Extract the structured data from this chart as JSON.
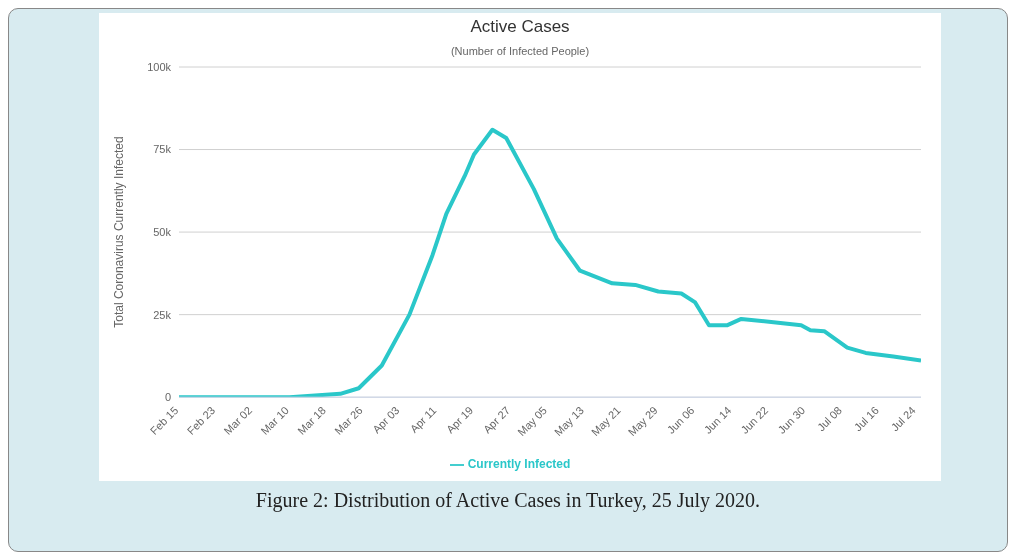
{
  "chart_data": {
    "type": "line",
    "title": "Active Cases",
    "subtitle": "(Number of Infected People)",
    "ylabel": "Total Coronavirus Currently Infected",
    "x": [
      "2020-02-15",
      "2020-03-10",
      "2020-03-21",
      "2020-03-25",
      "2020-03-30",
      "2020-04-05",
      "2020-04-10",
      "2020-04-13",
      "2020-04-17",
      "2020-04-19",
      "2020-04-23",
      "2020-04-26",
      "2020-05-02",
      "2020-05-07",
      "2020-05-12",
      "2020-05-19",
      "2020-05-24",
      "2020-05-29",
      "2020-06-03",
      "2020-06-06",
      "2020-06-09",
      "2020-06-13",
      "2020-06-16",
      "2020-06-23",
      "2020-06-29",
      "2020-07-01",
      "2020-07-04",
      "2020-07-09",
      "2020-07-13",
      "2020-07-19",
      "2020-07-25"
    ],
    "series": [
      {
        "name": "Currently Infected",
        "color": "#2ac7c9",
        "values": [
          0,
          0,
          1000,
          2700,
          9600,
          25000,
          43000,
          55500,
          67000,
          73500,
          81000,
          78500,
          63000,
          48000,
          38300,
          34500,
          34000,
          32000,
          31400,
          28700,
          21800,
          21800,
          23700,
          22700,
          21800,
          20300,
          20000,
          15000,
          13400,
          12300,
          11100
        ]
      }
    ],
    "xlim": [
      "2020-02-15",
      "2020-07-25"
    ],
    "xticks": [
      {
        "value": "2020-02-15",
        "label": "Feb 15"
      },
      {
        "value": "2020-02-23",
        "label": "Feb 23"
      },
      {
        "value": "2020-03-02",
        "label": "Mar 02"
      },
      {
        "value": "2020-03-10",
        "label": "Mar 10"
      },
      {
        "value": "2020-03-18",
        "label": "Mar 18"
      },
      {
        "value": "2020-03-26",
        "label": "Mar 26"
      },
      {
        "value": "2020-04-03",
        "label": "Apr 03"
      },
      {
        "value": "2020-04-11",
        "label": "Apr 11"
      },
      {
        "value": "2020-04-19",
        "label": "Apr 19"
      },
      {
        "value": "2020-04-27",
        "label": "Apr 27"
      },
      {
        "value": "2020-05-05",
        "label": "May 05"
      },
      {
        "value": "2020-05-13",
        "label": "May 13"
      },
      {
        "value": "2020-05-21",
        "label": "May 21"
      },
      {
        "value": "2020-05-29",
        "label": "May 29"
      },
      {
        "value": "2020-06-06",
        "label": "Jun 06"
      },
      {
        "value": "2020-06-14",
        "label": "Jun 14"
      },
      {
        "value": "2020-06-22",
        "label": "Jun 22"
      },
      {
        "value": "2020-06-30",
        "label": "Jun 30"
      },
      {
        "value": "2020-07-08",
        "label": "Jul 08"
      },
      {
        "value": "2020-07-16",
        "label": "Jul 16"
      },
      {
        "value": "2020-07-24",
        "label": "Jul 24"
      }
    ],
    "ylim": [
      0,
      100000
    ],
    "yticks": [
      0,
      {
        "value": 25000,
        "label": "25k"
      },
      {
        "value": 50000,
        "label": "50k"
      },
      {
        "value": 75000,
        "label": "75k"
      },
      {
        "value": 100000,
        "label": "100k"
      }
    ],
    "grid": "y",
    "legend": "bottom",
    "marker": "none",
    "line_style": "solid",
    "annotations": [
      "Figure 2: Distribution of Active Cases in Turkey, 25 July 2020."
    ]
  }
}
